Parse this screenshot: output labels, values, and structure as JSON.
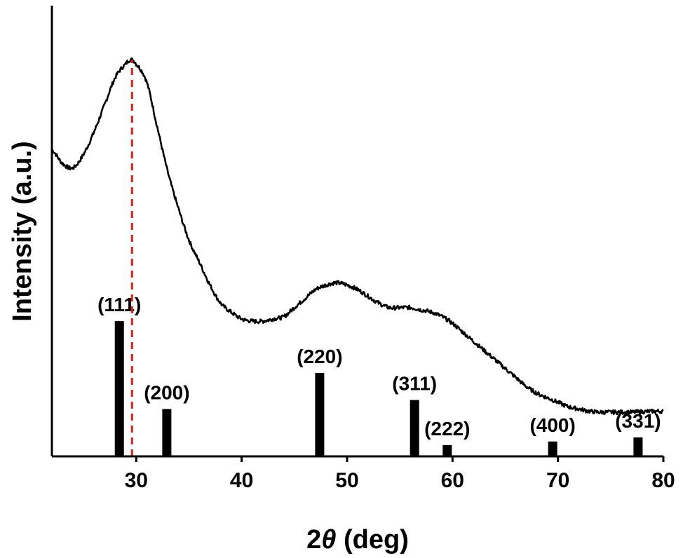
{
  "chart_data": {
    "type": "line",
    "xlabel_prefix": "2",
    "xlabel_symbol": "θ",
    "xlabel_suffix": " (deg)",
    "ylabel": "Intensity (a.u.)",
    "xlim": [
      22,
      80
    ],
    "ylim": [
      0,
      100
    ],
    "x_ticks": [
      30,
      40,
      50,
      60,
      70,
      80
    ],
    "x_tick_labels": [
      "30",
      "40",
      "50",
      "60",
      "70",
      "80"
    ],
    "grid": false,
    "colors": {
      "pattern": "#000000",
      "reference_line": "#e02020",
      "bars": "#000000"
    },
    "series": [
      {
        "kind": "measured-pattern",
        "x": [
          22,
          23,
          24,
          25,
          26,
          27,
          28,
          29,
          29.5,
          30,
          31,
          32,
          33,
          34,
          35,
          36,
          37,
          38,
          39,
          40,
          41,
          42,
          43,
          44,
          45,
          46,
          47,
          48,
          49,
          50,
          51,
          52,
          53,
          54,
          55,
          56,
          57,
          58,
          59,
          60,
          61,
          62,
          63,
          64,
          65,
          66,
          67,
          68,
          69,
          70,
          71,
          72,
          73,
          74,
          75,
          76,
          77,
          78,
          79,
          80
        ],
        "y": [
          68,
          65,
          64,
          67,
          72,
          78,
          84,
          87,
          88,
          87,
          83,
          73,
          63,
          55,
          48,
          43,
          38,
          34,
          32,
          30.5,
          30,
          30,
          30.5,
          31,
          33,
          35,
          37,
          38,
          38.5,
          38,
          37,
          35.5,
          34,
          33,
          33,
          33,
          32.5,
          32,
          31,
          29.5,
          27.5,
          25.5,
          23.5,
          21.5,
          19.5,
          17.5,
          15.5,
          14,
          13,
          12,
          11,
          10.5,
          10,
          9.8,
          9.8,
          9.8,
          9.8,
          9.9,
          10,
          10
        ]
      }
    ],
    "reference_line": {
      "x": 29.6
    },
    "reference_peaks": [
      {
        "label": "(111)",
        "x": 28.4,
        "height": 30
      },
      {
        "label": "(200)",
        "x": 32.9,
        "height": 10.5
      },
      {
        "label": "(220)",
        "x": 47.4,
        "height": 18.5
      },
      {
        "label": "(311)",
        "x": 56.4,
        "height": 12.5
      },
      {
        "label": "(222)",
        "x": 59.5,
        "height": 2.5
      },
      {
        "label": "(400)",
        "x": 69.5,
        "height": 3.3
      },
      {
        "label": "(331)",
        "x": 77.6,
        "height": 4.2
      }
    ]
  }
}
